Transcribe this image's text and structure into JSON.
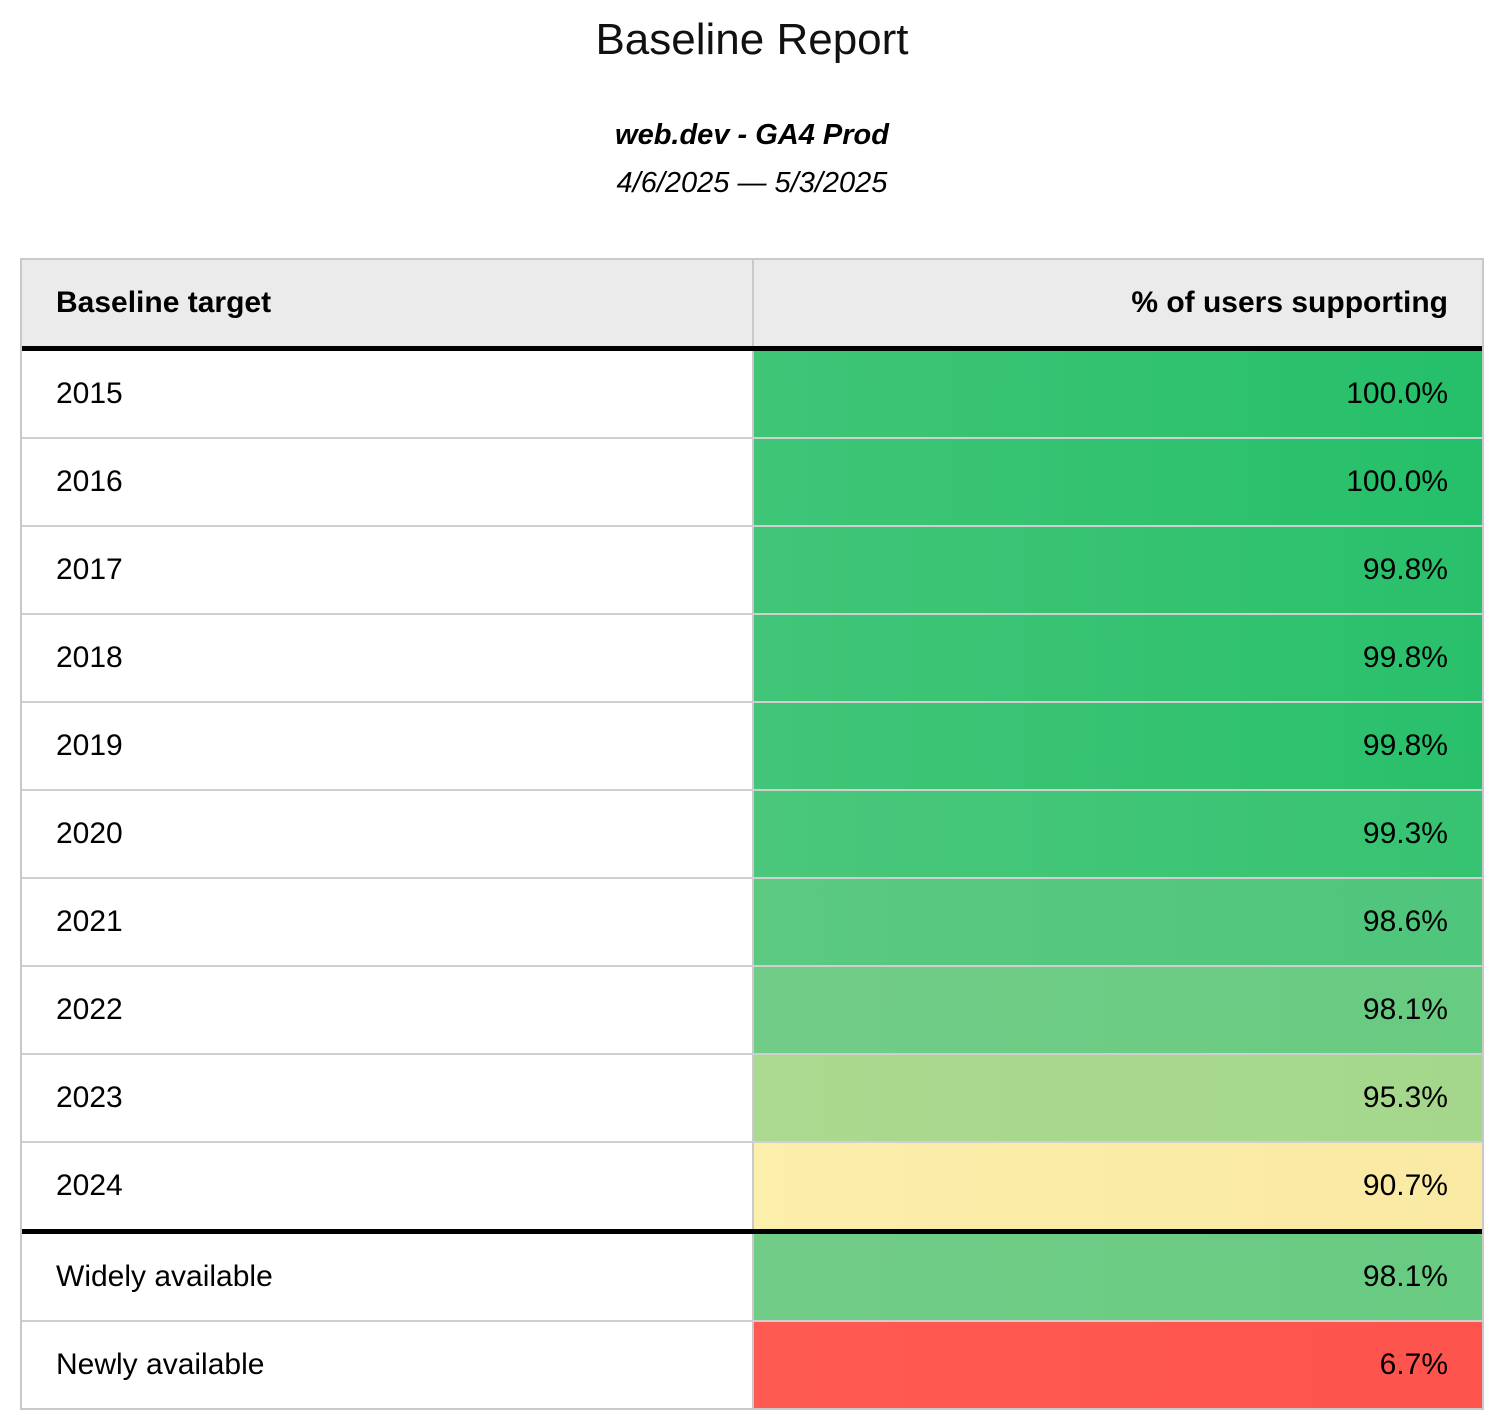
{
  "header": {
    "title": "Baseline Report",
    "subtitle": "web.dev - GA4 Prod",
    "date_range": "4/6/2025 — 5/3/2025"
  },
  "table": {
    "columns": [
      {
        "label": "Baseline target",
        "align": "left"
      },
      {
        "label": "% of users supporting",
        "align": "right"
      }
    ],
    "header_bg": "#ebebeb",
    "divider_color": "#cfcfcf",
    "section_divider_color": "#000000",
    "rows": [
      {
        "target": "2015",
        "value": "100.0%",
        "percent": 100.0,
        "bg": [
          "#40c577",
          "#25bf69"
        ],
        "section_break": false
      },
      {
        "target": "2016",
        "value": "100.0%",
        "percent": 100.0,
        "bg": [
          "#40c577",
          "#25bf69"
        ],
        "section_break": false
      },
      {
        "target": "2017",
        "value": "99.8%",
        "percent": 99.8,
        "bg": [
          "#42c578",
          "#29c06b"
        ],
        "section_break": false
      },
      {
        "target": "2018",
        "value": "99.8%",
        "percent": 99.8,
        "bg": [
          "#42c578",
          "#29c06b"
        ],
        "section_break": false
      },
      {
        "target": "2019",
        "value": "99.8%",
        "percent": 99.8,
        "bg": [
          "#42c578",
          "#29c06b"
        ],
        "section_break": false
      },
      {
        "target": "2020",
        "value": "99.3%",
        "percent": 99.3,
        "bg": [
          "#4ac77b",
          "#36c372"
        ],
        "section_break": false
      },
      {
        "target": "2021",
        "value": "98.6%",
        "percent": 98.6,
        "bg": [
          "#5cc980",
          "#4ec67b"
        ],
        "section_break": false
      },
      {
        "target": "2022",
        "value": "98.1%",
        "percent": 98.1,
        "bg": [
          "#71cc87",
          "#68cb82"
        ],
        "section_break": false
      },
      {
        "target": "2023",
        "value": "95.3%",
        "percent": 95.3,
        "bg": [
          "#abd98f",
          "#a4d78c"
        ],
        "section_break": false
      },
      {
        "target": "2024",
        "value": "90.7%",
        "percent": 90.7,
        "bg": [
          "#fceeab",
          "#f9e9a3"
        ],
        "section_break": false
      },
      {
        "target": "Widely available",
        "value": "98.1%",
        "percent": 98.1,
        "bg": [
          "#71cc87",
          "#68cb82"
        ],
        "section_break": true
      },
      {
        "target": "Newly available",
        "value": "6.7%",
        "percent": 6.7,
        "bg": [
          "#ff5a52",
          "#fd544d"
        ],
        "section_break": false
      }
    ]
  },
  "chart_data": {
    "type": "table",
    "title": "Baseline Report",
    "subtitle": "web.dev - GA4 Prod",
    "date_range": "4/6/2025 — 5/3/2025",
    "columns": [
      "Baseline target",
      "% of users supporting"
    ],
    "rows": [
      [
        "2015",
        100.0
      ],
      [
        "2016",
        100.0
      ],
      [
        "2017",
        99.8
      ],
      [
        "2018",
        99.8
      ],
      [
        "2019",
        99.8
      ],
      [
        "2020",
        99.3
      ],
      [
        "2021",
        98.6
      ],
      [
        "2022",
        98.1
      ],
      [
        "2023",
        95.3
      ],
      [
        "2024",
        90.7
      ],
      [
        "Widely available",
        98.1
      ],
      [
        "Newly available",
        6.7
      ]
    ]
  }
}
